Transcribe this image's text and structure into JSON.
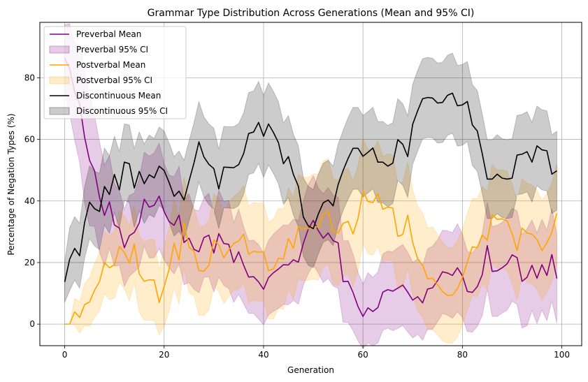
{
  "chart_data": {
    "type": "line",
    "title": "Grammar Type Distribution Across Generations (Mean and 95% CI)",
    "xlabel": "Generation",
    "ylabel": "Percentage of Negation Types (%)",
    "xlim": [
      -5,
      104
    ],
    "ylim": [
      -7,
      98
    ],
    "xticks": [
      0,
      20,
      40,
      60,
      80,
      100
    ],
    "yticks": [
      0,
      20,
      40,
      60,
      80
    ],
    "grid": true,
    "legend_position": "upper-left",
    "x": [
      0,
      1,
      2,
      3,
      4,
      5,
      6,
      7,
      8,
      9,
      10,
      11,
      12,
      13,
      14,
      15,
      16,
      17,
      18,
      19,
      20,
      21,
      22,
      23,
      24,
      25,
      26,
      27,
      28,
      29,
      30,
      31,
      32,
      33,
      34,
      35,
      36,
      37,
      38,
      39,
      40,
      41,
      42,
      43,
      44,
      45,
      46,
      47,
      48,
      49,
      50,
      51,
      52,
      53,
      54,
      55,
      56,
      57,
      58,
      59,
      60,
      61,
      62,
      63,
      64,
      65,
      66,
      67,
      68,
      69,
      70,
      71,
      72,
      73,
      74,
      75,
      76,
      77,
      78,
      79,
      80,
      81,
      82,
      83,
      84,
      85,
      86,
      87,
      88,
      89,
      90,
      91,
      92,
      93,
      94,
      95,
      96,
      97,
      98,
      99
    ],
    "series": [
      {
        "name": "Preverbal Mean",
        "ci_name": "Preverbal 95% CI",
        "color": "#800080",
        "mean": [
          86.3,
          82.9,
          75.4,
          71.6,
          60.7,
          53.2,
          49.8,
          41.2,
          35.3,
          39.7,
          32.2,
          31.2,
          24.8,
          28.7,
          29.8,
          32.9,
          40.6,
          38,
          38.6,
          41.6,
          36.5,
          33.3,
          32.1,
          35.4,
          26.5,
          27.9,
          24.3,
          23.5,
          28.1,
          28.9,
          23.1,
          29.4,
          26.2,
          25.9,
          20,
          23.5,
          19.1,
          15.3,
          15.4,
          13.7,
          11.3,
          15.1,
          16.7,
          17.9,
          19.3,
          19.2,
          20.9,
          20.1,
          26.2,
          30.9,
          33.7,
          30.4,
          27.9,
          29.6,
          27.1,
          26.4,
          13.8,
          13.9,
          10.3,
          5.7,
          2.5,
          5.3,
          4.1,
          5.4,
          10.4,
          11.2,
          10.7,
          11.7,
          12.7,
          10.4,
          7.8,
          8.9,
          6.9,
          11.4,
          11.8,
          14.1,
          17,
          16.6,
          15.8,
          18.3,
          15.7,
          10.6,
          10.3,
          12.2,
          16.1,
          25.5,
          17.1,
          17.3,
          18.3,
          19.6,
          22.5,
          21.6,
          13.9,
          15.2,
          19.1,
          14.9,
          19.3,
          15.8,
          22.6,
          14.8
        ],
        "ci_low": [
          75.4,
          68.3,
          59.8,
          52.6,
          39.4,
          31.9,
          31.8,
          23.3,
          18.9,
          24.7,
          18.8,
          19.1,
          12.3,
          15.6,
          17,
          18.6,
          25.4,
          21.5,
          21.6,
          24.5,
          20.9,
          18.3,
          16.3,
          19.6,
          12.8,
          13.5,
          11.4,
          10.2,
          15.2,
          15.4,
          10.5,
          15.3,
          12.6,
          11.6,
          7.1,
          9.7,
          6.6,
          3.5,
          3.5,
          1.6,
          -0.2,
          3,
          4.2,
          5.1,
          6.4,
          6.3,
          7.7,
          6.5,
          12.6,
          16.5,
          19.2,
          16.6,
          13.5,
          14.9,
          12.4,
          11.6,
          0.6,
          0.6,
          -2.1,
          -5.4,
          -8,
          -6.1,
          -7,
          -6.1,
          -2,
          -1.3,
          -2.1,
          -1.4,
          -0.4,
          -2.5,
          -4.5,
          -3.3,
          -5.2,
          -1.6,
          -1.7,
          0.8,
          3.5,
          2.9,
          1.9,
          4,
          2.2,
          -2.4,
          -2.6,
          -0.7,
          2.8,
          11.4,
          2.5,
          2.5,
          3.6,
          4.5,
          7.4,
          6.4,
          -1.3,
          -0.5,
          4.4,
          0.2,
          4.6,
          1.1,
          7.6,
          0.3
        ],
        "ci_high": [
          97.2,
          97.5,
          91,
          90.6,
          82,
          74.5,
          67.8,
          59.1,
          51.7,
          54.7,
          45.6,
          43.3,
          37.3,
          41.8,
          42.6,
          47.2,
          55.8,
          54.5,
          55.6,
          58.7,
          52.1,
          48.3,
          47.9,
          51.2,
          40.2,
          42.3,
          37.2,
          36.8,
          41,
          42.4,
          35.7,
          43.5,
          39.8,
          40.2,
          32.9,
          37.3,
          31.6,
          27.1,
          27.3,
          25.8,
          22.8,
          27.2,
          29.2,
          30.7,
          32.2,
          32.1,
          34.1,
          33.7,
          39.8,
          45.3,
          48.2,
          44.2,
          42.3,
          44.3,
          41.8,
          41.2,
          27,
          27.2,
          22.7,
          16.8,
          13,
          16.7,
          15.2,
          16.9,
          22.8,
          23.7,
          23.5,
          24.8,
          25.8,
          23.3,
          20.1,
          21.1,
          19,
          24.4,
          25.3,
          27.4,
          30.5,
          30.3,
          29.7,
          32.6,
          29.2,
          23.6,
          23.2,
          25.1,
          29.4,
          39.6,
          31.7,
          32.1,
          33,
          34.7,
          37.6,
          36.8,
          29.1,
          30.9,
          33.8,
          29.6,
          34,
          30.5,
          37.6,
          29.3
        ]
      },
      {
        "name": "Postverbal Mean",
        "ci_name": "Postverbal 95% CI",
        "color": "#ffa500",
        "mean": [
          0,
          0,
          4,
          2.2,
          6.3,
          7.2,
          11,
          13.8,
          20,
          18.3,
          19.3,
          25.2,
          23.3,
          19.8,
          26,
          16.3,
          13.9,
          14.4,
          14.3,
          7,
          12.2,
          17.8,
          26.2,
          20.8,
          33,
          25,
          23.7,
          17.4,
          17.2,
          19.1,
          27.3,
          25.7,
          21.5,
          24.1,
          26.2,
          27,
          29.2,
          22.7,
          23.7,
          23.3,
          23.6,
          17.4,
          17.9,
          21.4,
          21.1,
          27.8,
          24.6,
          31.6,
          30.9,
          31,
          31.7,
          31.5,
          35.7,
          36.6,
          30.2,
          29.6,
          32.7,
          33.4,
          29.3,
          34.3,
          43.2,
          39.8,
          39.5,
          42.3,
          37.3,
          38,
          37.7,
          28.5,
          29.1,
          35.4,
          26.5,
          21.3,
          19.2,
          14.7,
          14.9,
          12.8,
          10.6,
          9.3,
          9.4,
          11.5,
          15.2,
          20.2,
          25.1,
          24.8,
          28.9,
          27.2,
          35.6,
          34,
          34.2,
          33.5,
          29.4,
          23.9,
          31.2,
          29.6,
          29.2,
          27.5,
          23.9,
          26.4,
          29.8,
          36
        ],
        "ci_low": [
          0,
          0,
          -0.3,
          -2.9,
          -0.5,
          -0.7,
          2.2,
          4.4,
          9.9,
          7.9,
          8.4,
          13.6,
          11.4,
          7.6,
          13.4,
          3.9,
          1.2,
          1.3,
          1.1,
          -3.5,
          -0.8,
          4.2,
          11.9,
          6.4,
          18.2,
          10.1,
          9.1,
          2.9,
          2.7,
          4.6,
          12.4,
          10.6,
          6.7,
          8.9,
          10.9,
          11.3,
          13.4,
          7,
          7.9,
          7.4,
          7.7,
          1.7,
          1.7,
          5.2,
          4.8,
          11.3,
          8.1,
          14.7,
          14.1,
          14.3,
          14.6,
          14.3,
          18.4,
          19.5,
          13.1,
          12.5,
          15.5,
          16.2,
          12.2,
          17.2,
          26.2,
          22.9,
          22.4,
          25.2,
          20.2,
          20.7,
          20.6,
          11.4,
          12,
          18.2,
          9.4,
          4.4,
          2.3,
          -1.9,
          -1.8,
          -3.5,
          -5.4,
          -6.2,
          -6.1,
          -4.2,
          -0.3,
          4.5,
          9.3,
          8.9,
          13.1,
          11.4,
          19.5,
          18,
          18.3,
          17.4,
          13.2,
          7.8,
          15.2,
          13.5,
          13.2,
          11.3,
          7.7,
          10.3,
          13.7,
          19.8
        ],
        "ci_high": [
          0,
          0,
          8.3,
          7.3,
          13.1,
          15.1,
          19.8,
          23.2,
          30.1,
          28.7,
          30.2,
          36.8,
          35.2,
          32,
          38.6,
          28.7,
          26.6,
          27.5,
          27.5,
          17.5,
          25.2,
          31.4,
          40.5,
          35.2,
          47.8,
          39.9,
          38.3,
          31.9,
          31.7,
          33.6,
          42.2,
          40.8,
          36.3,
          39.3,
          41.5,
          42.7,
          45,
          38.4,
          39.5,
          39.2,
          39.5,
          33.1,
          34.1,
          37.6,
          37.4,
          44.3,
          41.1,
          48.5,
          47.7,
          47.7,
          48.8,
          48.7,
          53,
          53.7,
          47.3,
          46.7,
          49.9,
          50.6,
          46.4,
          51.4,
          60.2,
          56.7,
          56.6,
          59.4,
          54.4,
          55.3,
          54.8,
          45.6,
          46.2,
          52.6,
          43.6,
          38.2,
          36.1,
          31.3,
          31.6,
          29.1,
          26.6,
          24.8,
          24.9,
          27.2,
          30.7,
          35.9,
          40.9,
          40.7,
          44.7,
          43,
          51.7,
          50,
          50.1,
          49.6,
          45.6,
          40,
          47.2,
          45.7,
          45.2,
          43.7,
          40.1,
          42.5,
          45.9,
          52.2
        ]
      },
      {
        "name": "Discontinuous Mean",
        "ci_name": "Discontinuous 95% CI",
        "color": "#000000",
        "mean": [
          13.7,
          21.1,
          24.6,
          22.2,
          33,
          39.6,
          37.5,
          36.6,
          44.7,
          42.1,
          48.6,
          43.6,
          52.6,
          52.1,
          44.2,
          49.6,
          45.6,
          48.5,
          47.5,
          51.3,
          49.9,
          46,
          41.5,
          43.2,
          40.3,
          46.4,
          52.3,
          59.2,
          54.3,
          51.9,
          50.5,
          43.9,
          51,
          50.9,
          50.8,
          51.8,
          55.4,
          61.9,
          62.4,
          65.5,
          61,
          65,
          62.2,
          58.9,
          52.1,
          54.4,
          48.6,
          44.8,
          34.8,
          31.9,
          31,
          35.7,
          39.4,
          40.3,
          38.4,
          45.3,
          49.9,
          53.8,
          57.1,
          57.1,
          54.5,
          55.8,
          57.2,
          52.6,
          52.6,
          51.3,
          52.3,
          59.9,
          58.4,
          54.4,
          64.9,
          69.3,
          73.2,
          73.6,
          73.4,
          71.8,
          72,
          74.3,
          75,
          70.9,
          71.2,
          72.3,
          64.7,
          62.7,
          55.3,
          47.1,
          47.1,
          48.7,
          47.4,
          47.1,
          47.4,
          54.9,
          55.2,
          56,
          52.6,
          57.9,
          56.6,
          56.3,
          48.7,
          49.8
        ],
        "ci_low": [
          7.1,
          10.9,
          14.3,
          11.7,
          21.4,
          27.8,
          25.4,
          24.2,
          32.2,
          29.5,
          36.2,
          31.2,
          40.2,
          39.5,
          31.4,
          36.8,
          32.7,
          35.6,
          34.7,
          38.6,
          37.1,
          33.1,
          28.6,
          30.2,
          27.4,
          33.4,
          39.2,
          46.2,
          41.3,
          38.8,
          37.4,
          31,
          37.8,
          37.7,
          37.5,
          38.5,
          42.2,
          48.6,
          49.1,
          52.2,
          47.7,
          51.7,
          48.9,
          45.6,
          38.9,
          41.1,
          35.5,
          31.7,
          22.1,
          19.1,
          18.3,
          22.8,
          26.6,
          27.4,
          25.5,
          32.2,
          36.9,
          40.6,
          43.8,
          43.8,
          41.3,
          42.6,
          44,
          39.5,
          39.4,
          38.1,
          39.2,
          46.6,
          45.2,
          41.2,
          51.9,
          56.2,
          60.2,
          60.6,
          60.5,
          58.8,
          59,
          61.3,
          62,
          57.8,
          58.1,
          59.3,
          51.6,
          49.6,
          42.4,
          34.3,
          34.3,
          35.9,
          34.6,
          34.3,
          34.6,
          42,
          42.3,
          43,
          39.7,
          45,
          43.6,
          43.3,
          35.9,
          37
        ],
        "ci_high": [
          20.3,
          31.3,
          34.9,
          32.7,
          44.6,
          51.4,
          49.6,
          49,
          57.2,
          54.7,
          61,
          56,
          65,
          64.7,
          57,
          62.4,
          58.5,
          61.4,
          60.3,
          64,
          62.7,
          58.9,
          54.4,
          56.2,
          53.2,
          59.4,
          65.4,
          72.2,
          67.3,
          65,
          63.6,
          56.8,
          64.2,
          64.1,
          64.1,
          65.1,
          68.6,
          75.2,
          75.7,
          78.8,
          74.3,
          78.3,
          75.5,
          72.2,
          65.3,
          67.7,
          61.7,
          57.9,
          47.5,
          44.7,
          43.7,
          48.6,
          52.2,
          53.2,
          51.3,
          58.4,
          62.9,
          67,
          70.4,
          70.4,
          67.7,
          69,
          70.4,
          65.7,
          65.8,
          64.5,
          65.4,
          73.2,
          71.6,
          67.6,
          77.9,
          82.4,
          86.2,
          86.6,
          86.3,
          84.8,
          85,
          87.3,
          88,
          84,
          84.3,
          85.3,
          77.8,
          75.8,
          68.2,
          59.9,
          59.9,
          61.5,
          60.2,
          59.9,
          60.2,
          67.8,
          68.1,
          69,
          65.5,
          70.8,
          69.6,
          69.3,
          61.5,
          62.6
        ]
      }
    ]
  }
}
